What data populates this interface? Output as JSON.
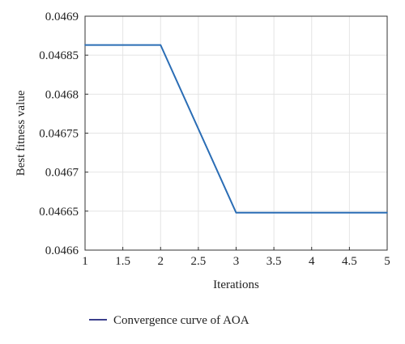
{
  "chart_data": {
    "type": "line",
    "title": "",
    "xlabel": "Iterations",
    "ylabel": "Best fitness value",
    "xlim": [
      1,
      5
    ],
    "ylim": [
      0.0466,
      0.0469
    ],
    "x_ticks": [
      1,
      1.5,
      2,
      2.5,
      3,
      3.5,
      4,
      4.5,
      5
    ],
    "x_tick_labels": [
      "1",
      "1.5",
      "2",
      "2.5",
      "3",
      "3.5",
      "4",
      "4.5",
      "5"
    ],
    "y_ticks": [
      0.0466,
      0.04665,
      0.0467,
      0.04675,
      0.0468,
      0.04685,
      0.0469
    ],
    "y_tick_labels": [
      "0.0466",
      "0.04665",
      "0.0467",
      "0.04675",
      "0.0468",
      "0.04685",
      "0.0469"
    ],
    "grid": true,
    "legend_position": "bottom-left",
    "series": [
      {
        "name": "Convergence curve of AOA",
        "color": "#2a6db5",
        "x": [
          1,
          2,
          3,
          4,
          5
        ],
        "y": [
          0.046863,
          0.046863,
          0.046648,
          0.046648,
          0.046648
        ]
      }
    ],
    "legend_line_color": "#3b3f8c"
  }
}
